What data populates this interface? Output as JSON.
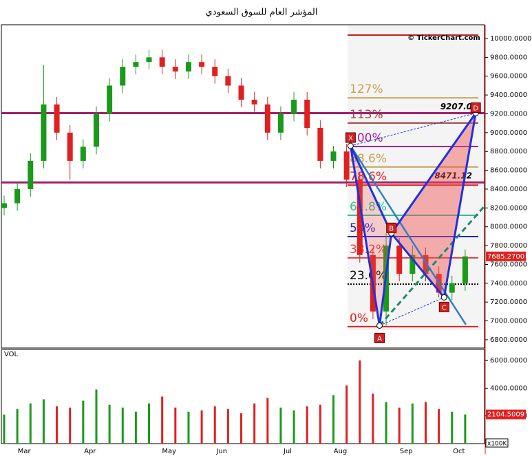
{
  "title": "المؤشر العام للسوق السعودي",
  "watermark": "© TickerChart.com",
  "chart_data": [
    {
      "type": "candlestick",
      "open": [
        8200,
        8250,
        8400,
        8700,
        9300,
        9000,
        8700,
        8850,
        9200,
        9500,
        9700,
        9750,
        9800,
        9700,
        9650,
        9750,
        9700,
        9600,
        9500,
        9350,
        9300,
        9000,
        9200,
        9350,
        9050,
        8700,
        8800,
        8500,
        7700,
        7100,
        7800,
        7500,
        7700,
        7500,
        7300,
        7400
      ],
      "high": [
        8330,
        8480,
        8780,
        9720,
        9380,
        9080,
        8930,
        9280,
        9580,
        9780,
        9830,
        9880,
        9880,
        9780,
        9830,
        9830,
        9780,
        9680,
        9580,
        9430,
        9380,
        9280,
        9430,
        9430,
        9130,
        8860,
        8880,
        8580,
        7780,
        7930,
        7880,
        7800,
        7780,
        7580,
        7480,
        7760
      ],
      "low": [
        8120,
        8170,
        8320,
        8620,
        8920,
        8500,
        8620,
        8770,
        9120,
        9420,
        9620,
        9670,
        9620,
        9570,
        9570,
        9620,
        9520,
        9420,
        9270,
        9220,
        8920,
        8920,
        9120,
        8970,
        8620,
        8620,
        8420,
        7620,
        7020,
        6950,
        7420,
        7420,
        7420,
        7250,
        7220,
        7320
      ],
      "close": [
        8250,
        8400,
        8700,
        9300,
        9000,
        8700,
        8850,
        9200,
        9500,
        9700,
        9750,
        9800,
        9700,
        9650,
        9750,
        9700,
        9600,
        9500,
        9350,
        9300,
        9000,
        9200,
        9350,
        9050,
        8700,
        8800,
        8500,
        7700,
        7100,
        7800,
        7500,
        7700,
        7500,
        7300,
        7400,
        7685.27
      ],
      "last_label": "7685.2700",
      "up_color": "#1a9a1a",
      "down_color": "#e02020",
      "ylim": [
        6712,
        10146
      ],
      "yticks": [
        {
          "value": 6800,
          "label": "6800.0000"
        },
        {
          "value": 7000,
          "label": "7000.0000"
        },
        {
          "value": 7200,
          "label": "7200.0000"
        },
        {
          "value": 7400,
          "label": "7400.0000"
        },
        {
          "value": 7600,
          "label": "7600.0000"
        },
        {
          "value": 7800,
          "label": "7800.0000"
        },
        {
          "value": 8000,
          "label": "8000.0000"
        },
        {
          "value": 8200,
          "label": "8200.0000"
        },
        {
          "value": 8400,
          "label": "8400.0000"
        },
        {
          "value": 8600,
          "label": "8600.0000"
        },
        {
          "value": 8800,
          "label": "8800.0000"
        },
        {
          "value": 9000,
          "label": "9000.0000"
        },
        {
          "value": 9200,
          "label": "9200.0000"
        },
        {
          "value": 9400,
          "label": "9400.0000"
        },
        {
          "value": 9600,
          "label": "9600.0000"
        },
        {
          "value": 9800,
          "label": "9800.0000"
        },
        {
          "value": 10000,
          "label": "10000.0000"
        }
      ],
      "levels": {
        "values": [
          9207,
          8471.12
        ],
        "value_labels": [
          "9207.0",
          "8471.12"
        ],
        "color": "#a0206a"
      },
      "fibonacci": {
        "labels": [
          "127%",
          "113%",
          "100%",
          "88.6%",
          "78.6%",
          "61.8%",
          "50%",
          "38.2%",
          "23.6%",
          "0%"
        ],
        "values": [
          9370,
          9102,
          8853,
          8635,
          8443,
          8122,
          7896,
          7670,
          7391,
          6939
        ],
        "colors": [
          "#c8a050",
          "#a04040",
          "#a020a0",
          "#c8a050",
          "#e02020",
          "#30c090",
          "#2020d0",
          "#e04040",
          "#000000",
          "#e02020"
        ]
      },
      "pattern": {
        "labels": [
          "X",
          "A",
          "B",
          "C",
          "D"
        ],
        "x": [
          26.3,
          28.5,
          29.4,
          33.4,
          35.8
        ],
        "values": [
          8860,
          6950,
          7930,
          7250,
          9207
        ]
      }
    },
    {
      "type": "bar",
      "label": "VOL",
      "categories": [
        null,
        "Mar",
        null,
        null,
        null,
        null,
        "Apr",
        null,
        null,
        null,
        null,
        null,
        "May",
        null,
        null,
        null,
        "Jun",
        null,
        null,
        null,
        null,
        "Jul",
        null,
        null,
        null,
        "Aug",
        null,
        null,
        null,
        null,
        "Sep",
        null,
        null,
        null,
        "Oct",
        null
      ],
      "values": [
        2100,
        2500,
        2900,
        3200,
        2700,
        2600,
        3100,
        3900,
        2800,
        2600,
        2300,
        2900,
        3400,
        2600,
        2300,
        2400,
        2700,
        2500,
        2200,
        2900,
        3300,
        2600,
        2400,
        2700,
        2800,
        3500,
        4200,
        6000,
        3600,
        3000,
        2600,
        2900,
        3000,
        2500,
        2300,
        2104.5009
      ],
      "unit": "x100K",
      "up_color": "#1a9a1a",
      "down_color": "#e02020",
      "ylim": [
        0,
        6800
      ],
      "yticks": [
        {
          "value": 2000,
          "label": "2000.0000"
        },
        {
          "value": 4000,
          "label": "4000.0000"
        },
        {
          "value": 6000,
          "label": "6000.0000"
        }
      ]
    }
  ]
}
